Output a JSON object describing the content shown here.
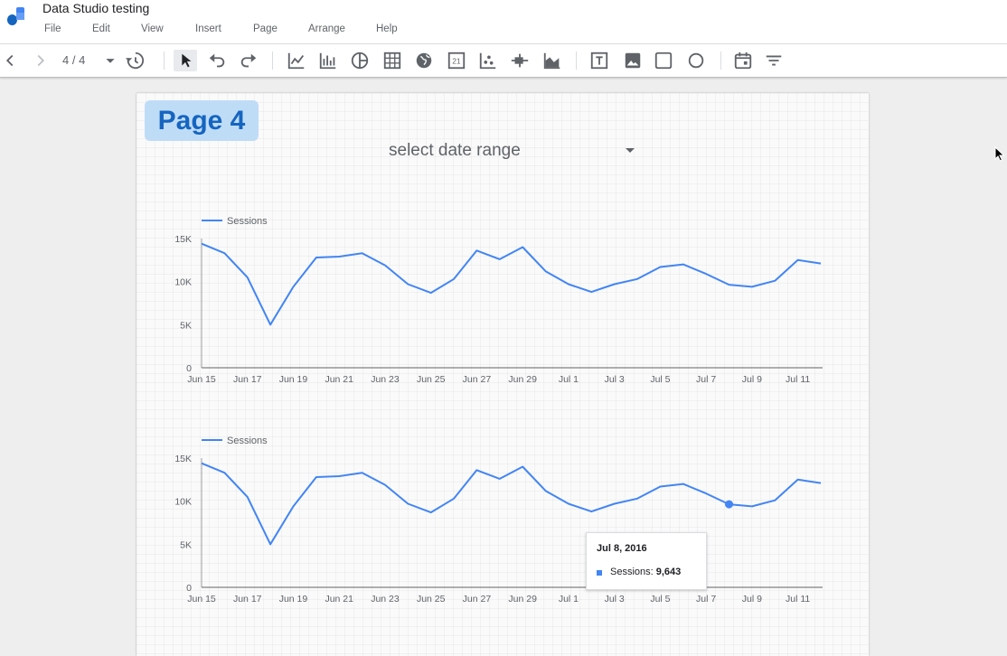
{
  "app": {
    "title": "Data Studio testing",
    "menu": [
      "File",
      "Edit",
      "View",
      "Insert",
      "Page",
      "Arrange",
      "Help"
    ]
  },
  "toolbar": {
    "page_indicator": "4 / 4",
    "icons": [
      "back-icon",
      "forward-icon",
      "page-dropdown-icon",
      "history-icon",
      "select-pointer-icon",
      "undo-icon",
      "redo-icon",
      "time-series-icon",
      "bar-chart-icon",
      "pie-chart-icon",
      "table-icon",
      "geo-map-icon",
      "scorecard-icon",
      "scatter-chart-icon",
      "bullet-chart-icon",
      "area-chart-icon",
      "text-icon",
      "image-icon",
      "rectangle-icon",
      "circle-icon",
      "date-range-icon",
      "filter-control-icon"
    ]
  },
  "page": {
    "badge": "Page 4",
    "date_range_label": "select date range"
  },
  "tooltip": {
    "date": "Jul 8, 2016",
    "label": "Sessions: ",
    "value": "9,643"
  },
  "colors": {
    "series": "#4285f4",
    "accent": "#1565c0"
  },
  "chart_data": [
    {
      "type": "line",
      "x": [
        "Jun 15",
        "Jun 16",
        "Jun 17",
        "Jun 18",
        "Jun 19",
        "Jun 20",
        "Jun 21",
        "Jun 22",
        "Jun 23",
        "Jun 24",
        "Jun 25",
        "Jun 26",
        "Jun 27",
        "Jun 28",
        "Jun 29",
        "Jun 30",
        "Jul 1",
        "Jul 2",
        "Jul 3",
        "Jul 4",
        "Jul 5",
        "Jul 6",
        "Jul 7",
        "Jul 8",
        "Jul 9",
        "Jul 10",
        "Jul 11",
        "Jul 12"
      ],
      "x_tick_labels": [
        "Jun 15",
        "Jun 17",
        "Jun 19",
        "Jun 21",
        "Jun 23",
        "Jun 25",
        "Jun 27",
        "Jun 29",
        "Jul 1",
        "Jul 3",
        "Jul 5",
        "Jul 7",
        "Jul 9",
        "Jul 11"
      ],
      "series": [
        {
          "name": "Sessions",
          "values": [
            14400,
            13300,
            10500,
            5000,
            9400,
            12800,
            12900,
            13300,
            11900,
            9700,
            8700,
            10300,
            13600,
            12600,
            14000,
            11200,
            9700,
            8800,
            9700,
            10300,
            11700,
            12000,
            10900,
            9643,
            9400,
            10100,
            12500,
            12100
          ]
        }
      ],
      "ylim": [
        0,
        15000
      ],
      "y_ticks": [
        "0",
        "5K",
        "10K",
        "15K"
      ],
      "legend": "top-left",
      "grid": false
    },
    {
      "type": "line",
      "x": [
        "Jun 15",
        "Jun 16",
        "Jun 17",
        "Jun 18",
        "Jun 19",
        "Jun 20",
        "Jun 21",
        "Jun 22",
        "Jun 23",
        "Jun 24",
        "Jun 25",
        "Jun 26",
        "Jun 27",
        "Jun 28",
        "Jun 29",
        "Jun 30",
        "Jul 1",
        "Jul 2",
        "Jul 3",
        "Jul 4",
        "Jul 5",
        "Jul 6",
        "Jul 7",
        "Jul 8",
        "Jul 9",
        "Jul 10",
        "Jul 11",
        "Jul 12"
      ],
      "x_tick_labels": [
        "Jun 15",
        "Jun 17",
        "Jun 19",
        "Jun 21",
        "Jun 23",
        "Jun 25",
        "Jun 27",
        "Jun 29",
        "Jul 1",
        "Jul 3",
        "Jul 5",
        "Jul 7",
        "Jul 9",
        "Jul 11"
      ],
      "series": [
        {
          "name": "Sessions",
          "values": [
            14400,
            13300,
            10500,
            5000,
            9400,
            12800,
            12900,
            13300,
            11900,
            9700,
            8700,
            10300,
            13600,
            12600,
            14000,
            11200,
            9700,
            8800,
            9700,
            10300,
            11700,
            12000,
            10900,
            9643,
            9400,
            10100,
            12500,
            12100
          ]
        }
      ],
      "ylim": [
        0,
        15000
      ],
      "y_ticks": [
        "0",
        "5K",
        "10K",
        "15K"
      ],
      "legend": "top-left",
      "grid": false,
      "highlight": "Jul 8"
    }
  ]
}
